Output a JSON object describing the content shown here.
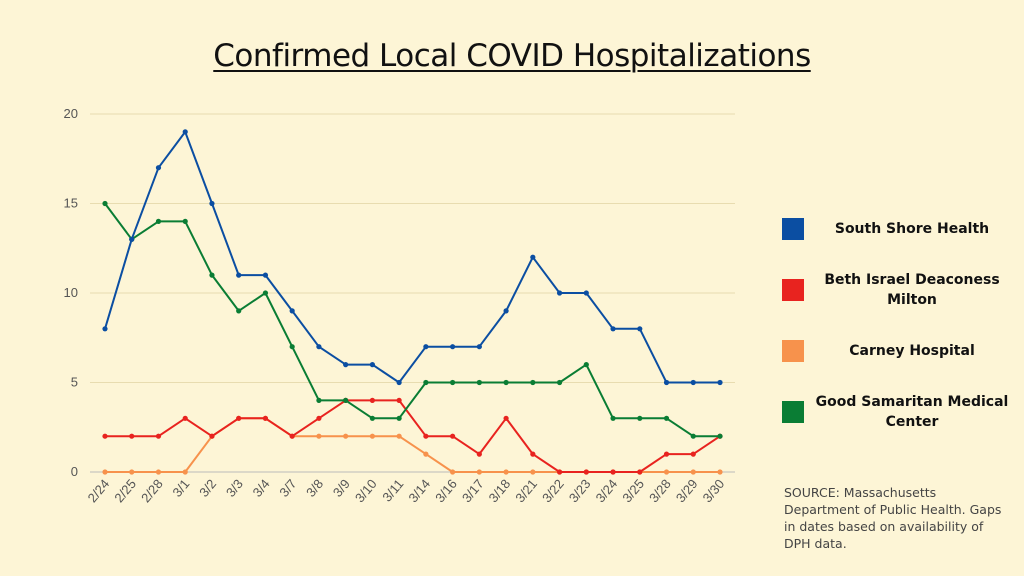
{
  "chart_data": {
    "type": "line",
    "title": "Confirmed Local COVID Hospitalizations",
    "categories": [
      "2/24",
      "2/25",
      "2/28",
      "3/1",
      "3/2",
      "3/3",
      "3/4",
      "3/7",
      "3/8",
      "3/9",
      "3/10",
      "3/11",
      "3/14",
      "3/16",
      "3/17",
      "3/18",
      "3/21",
      "3/22",
      "3/23",
      "3/24",
      "3/25",
      "3/28",
      "3/29",
      "3/30"
    ],
    "ylim": [
      0,
      20
    ],
    "yticks": [
      0,
      5,
      10,
      15,
      20
    ],
    "grid": true,
    "legend_position": "right",
    "series": [
      {
        "name": "South Shore Health",
        "color": "#0b4ea2",
        "values": [
          8,
          13,
          17,
          19,
          15,
          11,
          11,
          9,
          7,
          6,
          6,
          5,
          7,
          7,
          7,
          9,
          12,
          10,
          10,
          8,
          8,
          5,
          5,
          5
        ]
      },
      {
        "name": "Beth Israel Deaconess Milton",
        "color": "#e8231f",
        "values": [
          2,
          2,
          2,
          3,
          2,
          3,
          3,
          2,
          3,
          4,
          4,
          4,
          2,
          2,
          1,
          3,
          1,
          0,
          0,
          0,
          0,
          1,
          1,
          2
        ]
      },
      {
        "name": "Carney Hospital",
        "color": "#f7924c",
        "values": [
          0,
          0,
          0,
          0,
          2,
          3,
          3,
          2,
          2,
          2,
          2,
          2,
          1,
          0,
          0,
          0,
          0,
          0,
          0,
          0,
          0,
          0,
          0,
          0
        ]
      },
      {
        "name": "Good Samaritan Medical Center",
        "color": "#0a7d34",
        "values": [
          15,
          13,
          14,
          14,
          11,
          9,
          10,
          7,
          4,
          4,
          3,
          3,
          5,
          5,
          5,
          5,
          5,
          5,
          6,
          3,
          3,
          3,
          2,
          2
        ]
      }
    ],
    "source_note": "SOURCE: Massachusetts Department of Public Health. Gaps in dates based on availability of DPH data."
  }
}
